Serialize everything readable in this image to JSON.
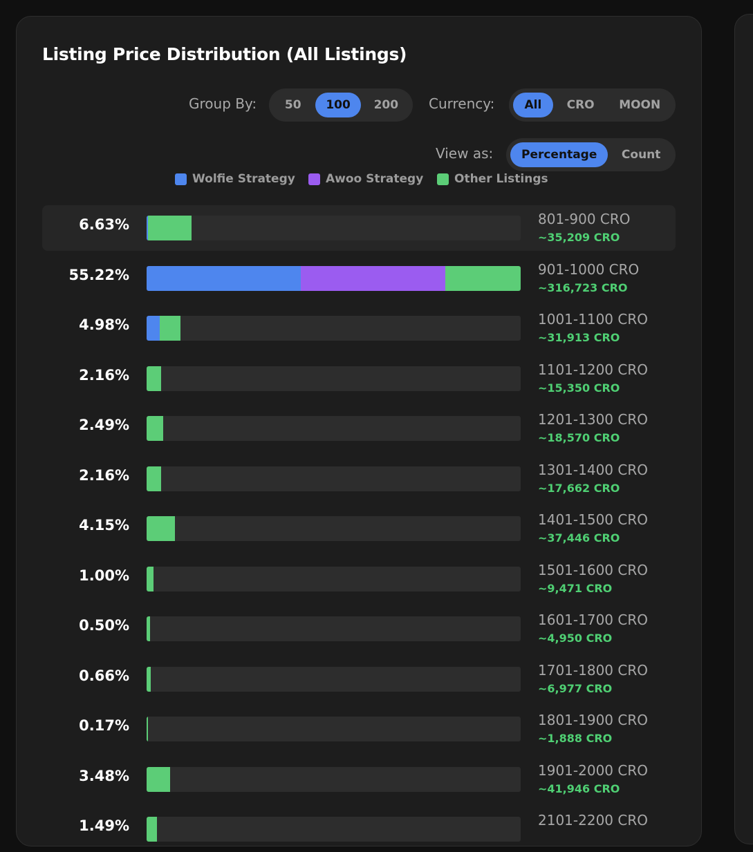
{
  "title": "Listing Price Distribution (All Listings)",
  "controls": {
    "group_by_label": "Group By:",
    "group_by_options": [
      "50",
      "100",
      "200"
    ],
    "group_by_selected": "100",
    "currency_label": "Currency:",
    "currency_options": [
      "All",
      "CRO",
      "MOON"
    ],
    "currency_selected": "All",
    "view_label": "View as:",
    "view_options": [
      "Percentage",
      "Count"
    ],
    "view_selected": "Percentage"
  },
  "colors": {
    "wolfie": "#4e86ee",
    "awoo": "#9b5cf0",
    "other": "#5ccd77"
  },
  "legend": [
    {
      "key": "wolfie",
      "label": "Wolfie Strategy"
    },
    {
      "key": "awoo",
      "label": "Awoo Strategy"
    },
    {
      "key": "other",
      "label": "Other Listings"
    }
  ],
  "chart_data": {
    "type": "bar",
    "orientation": "horizontal",
    "stacked": true,
    "title": "Listing Price Distribution (All Listings)",
    "unit": "percent",
    "series_names": [
      "Wolfie Strategy",
      "Awoo Strategy",
      "Other Listings"
    ],
    "rows": [
      {
        "pct_label": "6.63%",
        "range": "801-900 CRO",
        "cro": "~35,209 CRO",
        "value": 6.63,
        "wolfie": 0.17,
        "awoo": 0,
        "other": 6.46
      },
      {
        "pct_label": "55.22%",
        "range": "901-1000 CRO",
        "cro": "~316,723 CRO",
        "value": 55.22,
        "wolfie": 22.8,
        "awoo": 21.3,
        "other": 11.12
      },
      {
        "pct_label": "4.98%",
        "range": "1001-1100 CRO",
        "cro": "~31,913 CRO",
        "value": 4.98,
        "wolfie": 1.95,
        "awoo": 0,
        "other": 3.03
      },
      {
        "pct_label": "2.16%",
        "range": "1101-1200 CRO",
        "cro": "~15,350 CRO",
        "value": 2.16,
        "wolfie": 0,
        "awoo": 0,
        "other": 2.16
      },
      {
        "pct_label": "2.49%",
        "range": "1201-1300 CRO",
        "cro": "~18,570 CRO",
        "value": 2.49,
        "wolfie": 0,
        "awoo": 0,
        "other": 2.49
      },
      {
        "pct_label": "2.16%",
        "range": "1301-1400 CRO",
        "cro": "~17,662 CRO",
        "value": 2.16,
        "wolfie": 0,
        "awoo": 0,
        "other": 2.16
      },
      {
        "pct_label": "4.15%",
        "range": "1401-1500 CRO",
        "cro": "~37,446 CRO",
        "value": 4.15,
        "wolfie": 0,
        "awoo": 0,
        "other": 4.15
      },
      {
        "pct_label": "1.00%",
        "range": "1501-1600 CRO",
        "cro": "~9,471 CRO",
        "value": 1.0,
        "wolfie": 0,
        "awoo": 0,
        "other": 1.0
      },
      {
        "pct_label": "0.50%",
        "range": "1601-1700 CRO",
        "cro": "~4,950 CRO",
        "value": 0.5,
        "wolfie": 0,
        "awoo": 0,
        "other": 0.5
      },
      {
        "pct_label": "0.66%",
        "range": "1701-1800 CRO",
        "cro": "~6,977 CRO",
        "value": 0.66,
        "wolfie": 0,
        "awoo": 0,
        "other": 0.66
      },
      {
        "pct_label": "0.17%",
        "range": "1801-1900 CRO",
        "cro": "~1,888 CRO",
        "value": 0.17,
        "wolfie": 0,
        "awoo": 0,
        "other": 0.17
      },
      {
        "pct_label": "3.48%",
        "range": "1901-2000 CRO",
        "cro": "~41,946 CRO",
        "value": 3.48,
        "wolfie": 0,
        "awoo": 0,
        "other": 3.48
      },
      {
        "pct_label": "1.49%",
        "range": "2101-2200 CRO",
        "cro": "",
        "value": 1.49,
        "wolfie": 0,
        "awoo": 0,
        "other": 1.49
      }
    ],
    "highlighted_row": 0
  }
}
